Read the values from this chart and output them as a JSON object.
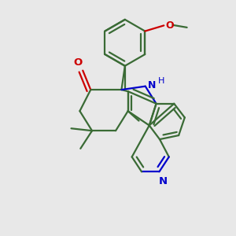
{
  "bg_color": "#e8e8e8",
  "bond_color": "#3a6b35",
  "bond_width": 1.6,
  "O_color": "#cc0000",
  "N_color": "#0000cc",
  "figsize": [
    3.0,
    3.0
  ],
  "dpi": 100,
  "xlim": [
    0,
    10
  ],
  "ylim": [
    0,
    10
  ]
}
